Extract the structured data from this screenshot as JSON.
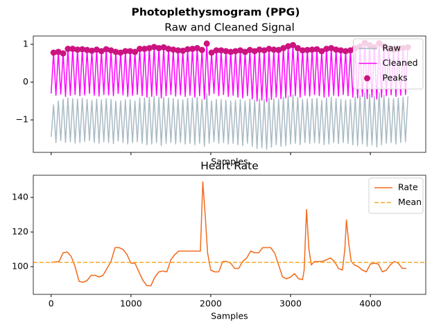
{
  "title": "Photoplethysmogram (PPG)",
  "chart_data": [
    {
      "type": "line",
      "title": "Raw and Cleaned Signal",
      "xlabel": "Samples",
      "xlim": [
        -224,
        4694
      ],
      "xticks": [
        0,
        1000,
        2000,
        3000,
        4000
      ],
      "show_xtick_labels": false,
      "ylim": [
        -1.86,
        1.22
      ],
      "yticks": [
        {
          "value": -1,
          "label": "−1"
        },
        0,
        1
      ],
      "legend": "upper right",
      "x": [
        0,
        30,
        60,
        90,
        120,
        150,
        180,
        210,
        240,
        270,
        300,
        330,
        360,
        390,
        420,
        450,
        480,
        510,
        540,
        570,
        600,
        630,
        660,
        690,
        720,
        750,
        780,
        810,
        840,
        870,
        900,
        930,
        960,
        990,
        1020,
        1050,
        1080,
        1110,
        1140,
        1170,
        1200,
        1230,
        1260,
        1290,
        1320,
        1350,
        1380,
        1410,
        1440,
        1470,
        1500,
        1530,
        1560,
        1590,
        1620,
        1650,
        1680,
        1710,
        1740,
        1770,
        1800,
        1830,
        1860,
        1890,
        1920,
        1950,
        1980,
        2010,
        2040,
        2070,
        2100,
        2130,
        2160,
        2190,
        2220,
        2250,
        2280,
        2310,
        2340,
        2370,
        2400,
        2430,
        2460,
        2490,
        2520,
        2550,
        2580,
        2610,
        2640,
        2670,
        2700,
        2730,
        2760,
        2790,
        2820,
        2850,
        2880,
        2910,
        2940,
        2970,
        3000,
        3030,
        3060,
        3090,
        3120,
        3150,
        3180,
        3210,
        3240,
        3270,
        3300,
        3330,
        3360,
        3390,
        3420,
        3450,
        3480,
        3510,
        3540,
        3570,
        3600,
        3630,
        3660,
        3690,
        3720,
        3750,
        3780,
        3810,
        3840,
        3870,
        3900,
        3930,
        3960,
        3990,
        4020,
        4050,
        4080,
        4110,
        4140,
        4170,
        4200,
        4230,
        4260,
        4290,
        4320,
        4350,
        4380,
        4410,
        4440,
        4470
      ],
      "series": [
        {
          "name": "Raw",
          "color": "#a9bac4",
          "values": [
            -1.45,
            -0.6,
            -1.6,
            -0.5,
            -1.55,
            -0.45,
            -1.6,
            -0.42,
            -1.58,
            -0.44,
            -1.62,
            -0.45,
            -1.6,
            -0.43,
            -1.57,
            -0.46,
            -1.55,
            -0.48,
            -1.6,
            -0.45,
            -1.62,
            -0.47,
            -1.58,
            -0.44,
            -1.6,
            -0.46,
            -1.63,
            -0.5,
            -1.56,
            -0.5,
            -1.6,
            -0.47,
            -1.64,
            -0.47,
            -1.6,
            -0.5,
            -1.58,
            -0.42,
            -1.62,
            -0.42,
            -1.66,
            -0.4,
            -1.64,
            -0.38,
            -1.6,
            -0.4,
            -1.68,
            -0.4,
            -1.62,
            -0.42,
            -1.6,
            -0.44,
            -1.64,
            -0.46,
            -1.6,
            -0.47,
            -1.64,
            -0.43,
            -1.62,
            -0.42,
            -1.66,
            -0.4,
            -1.62,
            -0.45,
            -1.7,
            -0.3,
            -1.62,
            -0.5,
            -1.58,
            -0.46,
            -1.62,
            -0.46,
            -1.6,
            -0.48,
            -1.64,
            -0.5,
            -1.62,
            -0.48,
            -1.66,
            -0.46,
            -1.68,
            -0.5,
            -1.62,
            -0.45,
            -1.7,
            -0.48,
            -1.76,
            -0.44,
            -1.74,
            -0.46,
            -1.78,
            -0.42,
            -1.72,
            -0.44,
            -1.66,
            -0.45,
            -1.7,
            -0.4,
            -1.68,
            -0.36,
            -1.64,
            -0.33,
            -1.62,
            -0.4,
            -1.66,
            -0.46,
            -1.6,
            -0.45,
            -1.63,
            -0.44,
            -1.6,
            -0.43,
            -1.62,
            -0.48,
            -1.66,
            -0.42,
            -1.64,
            -0.4,
            -1.6,
            -0.44,
            -1.63,
            -0.46,
            -1.6,
            -0.48,
            -1.62,
            -0.46,
            -1.66,
            -0.4,
            -1.68,
            -0.36,
            -1.64,
            -0.28,
            -1.7,
            -0.32,
            -1.66,
            -0.38,
            -1.72,
            -0.28,
            -1.66,
            -0.35,
            -1.62,
            -0.42,
            -1.6,
            -0.44,
            -1.64,
            -0.42,
            -1.6,
            -0.4,
            -1.58,
            -0.38
          ]
        },
        {
          "name": "Cleaned",
          "color": "#ff00ff",
          "values": [
            -0.3,
            0.78,
            -0.35,
            0.8,
            -0.32,
            0.76,
            -0.38,
            0.88,
            -0.35,
            0.88,
            -0.33,
            0.86,
            -0.36,
            0.87,
            -0.34,
            0.85,
            -0.3,
            0.83,
            -0.35,
            0.86,
            -0.37,
            0.82,
            -0.33,
            0.87,
            -0.34,
            0.84,
            -0.36,
            0.8,
            -0.3,
            0.78,
            -0.34,
            0.82,
            -0.38,
            0.82,
            -0.35,
            0.8,
            -0.33,
            0.88,
            -0.36,
            0.88,
            -0.4,
            0.9,
            -0.38,
            0.93,
            -0.35,
            0.9,
            -0.42,
            0.92,
            -0.36,
            0.88,
            -0.33,
            0.86,
            -0.37,
            0.84,
            -0.34,
            0.83,
            -0.38,
            0.87,
            -0.35,
            0.88,
            -0.4,
            0.9,
            -0.36,
            0.85,
            -0.45,
            1.02,
            -0.35,
            0.78,
            -0.3,
            0.84,
            -0.36,
            0.84,
            -0.33,
            0.82,
            -0.38,
            0.8,
            -0.35,
            0.82,
            -0.4,
            0.84,
            -0.42,
            0.8,
            -0.36,
            0.85,
            -0.45,
            0.82,
            -0.5,
            0.86,
            -0.48,
            0.84,
            -0.52,
            0.88,
            -0.46,
            0.86,
            -0.4,
            0.85,
            -0.44,
            0.9,
            -0.42,
            0.95,
            -0.38,
            0.98,
            -0.36,
            0.9,
            -0.4,
            0.84,
            -0.35,
            0.85,
            -0.37,
            0.86,
            -0.33,
            0.87,
            -0.36,
            0.82,
            -0.4,
            0.88,
            -0.38,
            0.9,
            -0.35,
            0.86,
            -0.37,
            0.84,
            -0.33,
            0.82,
            -0.36,
            0.84,
            -0.4,
            0.9,
            -0.42,
            0.94,
            -0.38,
            1.04,
            -0.44,
            0.98,
            -0.4,
            0.92,
            -0.45,
            1.03,
            -0.4,
            0.95,
            -0.36,
            0.88,
            -0.34,
            0.86,
            -0.38,
            0.88,
            -0.35,
            0.9,
            -0.33,
            0.92
          ]
        },
        {
          "name": "Peaks",
          "color": "#cc1480",
          "marker": "o",
          "x": [
            30,
            90,
            150,
            210,
            270,
            330,
            390,
            450,
            510,
            570,
            630,
            690,
            750,
            810,
            870,
            930,
            990,
            1050,
            1110,
            1170,
            1230,
            1290,
            1350,
            1410,
            1470,
            1530,
            1590,
            1650,
            1710,
            1770,
            1830,
            1890,
            1950,
            2010,
            2070,
            2130,
            2190,
            2250,
            2310,
            2370,
            2430,
            2490,
            2550,
            2610,
            2670,
            2730,
            2790,
            2850,
            2910,
            2970,
            3030,
            3090,
            3150,
            3210,
            3270,
            3330,
            3390,
            3450,
            3510,
            3570,
            3630,
            3690,
            3750,
            3810,
            3870,
            3930,
            3990,
            4050,
            4110,
            4170,
            4230,
            4290,
            4350,
            4410,
            4470
          ],
          "values": [
            0.78,
            0.8,
            0.76,
            0.88,
            0.88,
            0.86,
            0.87,
            0.85,
            0.83,
            0.86,
            0.82,
            0.87,
            0.84,
            0.8,
            0.78,
            0.82,
            0.82,
            0.8,
            0.88,
            0.88,
            0.9,
            0.93,
            0.9,
            0.92,
            0.88,
            0.86,
            0.84,
            0.83,
            0.87,
            0.88,
            0.9,
            0.85,
            1.02,
            0.78,
            0.84,
            0.84,
            0.82,
            0.8,
            0.82,
            0.84,
            0.8,
            0.85,
            0.82,
            0.86,
            0.84,
            0.88,
            0.86,
            0.85,
            0.9,
            0.95,
            0.98,
            0.9,
            0.84,
            0.85,
            0.86,
            0.87,
            0.82,
            0.88,
            0.9,
            0.86,
            0.84,
            0.82,
            0.84,
            0.9,
            0.94,
            1.04,
            0.98,
            0.92,
            1.03,
            0.95,
            0.88,
            0.86,
            0.88,
            0.9,
            0.92
          ]
        }
      ]
    },
    {
      "type": "line",
      "title": "Heart Rate",
      "xlabel": "Samples",
      "xlim": [
        -224,
        4694
      ],
      "xticks": [
        0,
        1000,
        2000,
        3000,
        4000
      ],
      "ylim": [
        84,
        152.8
      ],
      "yticks": [
        100,
        120,
        140
      ],
      "legend": "upper right",
      "x": [
        0,
        100,
        150,
        200,
        250,
        300,
        350,
        400,
        450,
        500,
        550,
        600,
        650,
        700,
        750,
        800,
        850,
        900,
        950,
        1000,
        1050,
        1100,
        1150,
        1200,
        1250,
        1300,
        1350,
        1400,
        1450,
        1500,
        1550,
        1600,
        1700,
        1800,
        1870,
        1900,
        1930,
        1960,
        2000,
        2050,
        2100,
        2150,
        2200,
        2250,
        2300,
        2350,
        2400,
        2450,
        2500,
        2550,
        2600,
        2650,
        2750,
        2800,
        2850,
        2900,
        2950,
        3000,
        3050,
        3100,
        3150,
        3170,
        3200,
        3230,
        3260,
        3300,
        3350,
        3400,
        3450,
        3500,
        3550,
        3600,
        3650,
        3680,
        3700,
        3730,
        3760,
        3800,
        3850,
        3900,
        3950,
        4000,
        4050,
        4100,
        4150,
        4200,
        4250,
        4300,
        4350,
        4400,
        4450
      ],
      "series": [
        {
          "name": "Rate",
          "color": "#f26b1d",
          "values": [
            102.5,
            103,
            108,
            108.5,
            106,
            100,
            91.5,
            91,
            92,
            95,
            95,
            94,
            95,
            99,
            103,
            111,
            111,
            110,
            107,
            102,
            102,
            97,
            92,
            89,
            89,
            94,
            97,
            97.5,
            97,
            104,
            107,
            109,
            109,
            109,
            109,
            149,
            130,
            108,
            98,
            97,
            97,
            103,
            103,
            102,
            99,
            99,
            103,
            105,
            109,
            108,
            108,
            111,
            111,
            108,
            101,
            94,
            93,
            94,
            96,
            93,
            92.5,
            98,
            133,
            110,
            101,
            103,
            103,
            103,
            104,
            105,
            103,
            99,
            98,
            110,
            127,
            113,
            103,
            101,
            100,
            98,
            97,
            101.5,
            102,
            101.5,
            97,
            98,
            101,
            103,
            102,
            99,
            99
          ]
        },
        {
          "name": "Mean",
          "color": "#f8a926",
          "dash": true,
          "value": 102.5
        }
      ]
    }
  ]
}
